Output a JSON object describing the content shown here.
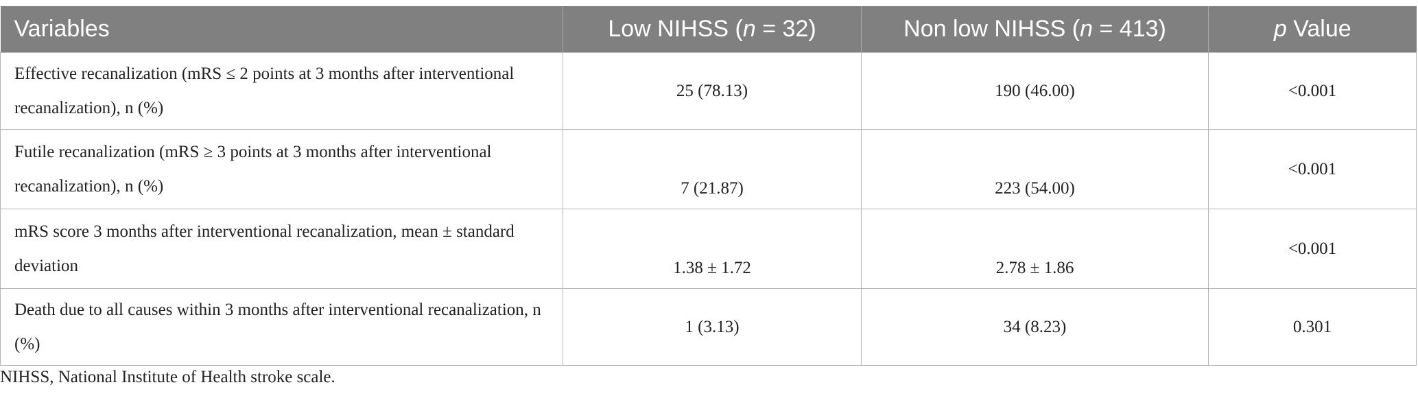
{
  "table": {
    "headers": [
      [
        "Variables"
      ],
      [
        "Low NIHSS (",
        "n",
        " = 32)"
      ],
      [
        "Non low NIHSS (",
        "n",
        " = 413)"
      ],
      [
        "p",
        " Value"
      ]
    ],
    "rows": [
      [
        "Effective recanalization (mRS ≤ 2 points at 3 months after interventional recanalization), n (%)",
        "25 (78.13)",
        "190 (46.00)",
        "<0.001"
      ],
      [
        "Futile recanalization (mRS ≥ 3 points at 3 months after interventional recanalization), n (%)",
        "7 (21.87)",
        "223 (54.00)",
        "<0.001"
      ],
      [
        "mRS score 3 months after interventional recanalization, mean ± standard deviation",
        "1.38 ± 1.72",
        "2.78 ± 1.86",
        "<0.001"
      ],
      [
        "Death due to all causes within 3 months after interventional recanalization, n (%)",
        "1 (3.13)",
        "34 (8.23)",
        "0.301"
      ]
    ],
    "footnote": "NIHSS, National Institute of Health stroke scale."
  }
}
